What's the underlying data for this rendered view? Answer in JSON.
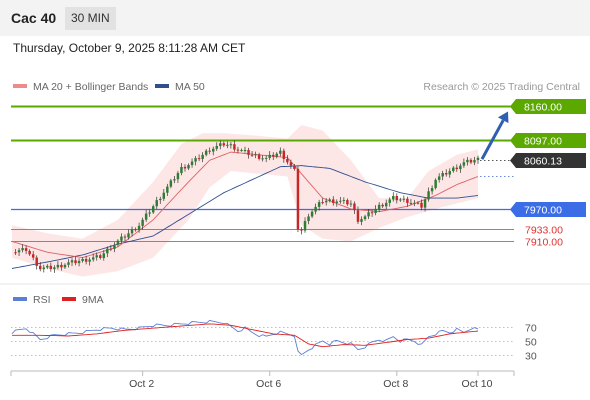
{
  "header": {
    "symbol": "Cac 40",
    "timeframe": "30 MIN"
  },
  "datetime": "Thursday, October 9, 2025 8:11:28 AM CET",
  "legend": {
    "bollinger": {
      "label": "MA 20 + Bollinger Bands",
      "color": "#f08a8a"
    },
    "ma50": {
      "label": "MA 50",
      "color": "#2f4f8f"
    }
  },
  "copyright": "Research © 2025 Trading Central",
  "colors": {
    "up": "#2e7d32",
    "down": "#c62828",
    "resistance": "#5aa800",
    "support": "#3b6ee6",
    "target": "#e03030",
    "last": "#333333",
    "arrow": "#2e5fb0"
  },
  "chart_data": [
    {
      "type": "candlestick",
      "x_ticks": [
        "Oct 2",
        "Oct 6",
        "Oct 8",
        "Oct 10"
      ],
      "y_range": [
        7835,
        8175
      ],
      "last_price": 8060.13,
      "levels": [
        {
          "value": 8160.0,
          "label": "8160.00",
          "kind": "resistance"
        },
        {
          "value": 8097.0,
          "label": "8097.00",
          "kind": "resistance"
        },
        {
          "value": 7970.0,
          "label": "7970.00",
          "kind": "support"
        },
        {
          "value": 7933.0,
          "label": "7933.00",
          "kind": "target"
        },
        {
          "value": 7910.0,
          "label": "7910.00",
          "kind": "target"
        }
      ],
      "forecast_arrow": {
        "from": 8062,
        "to": 8150
      },
      "close_path": [
        [
          0,
          7890
        ],
        [
          4,
          7895
        ],
        [
          8,
          7860
        ],
        [
          12,
          7862
        ],
        [
          16,
          7870
        ],
        [
          20,
          7875
        ],
        [
          25,
          7882
        ],
        [
          28,
          7900
        ],
        [
          32,
          7920
        ],
        [
          36,
          7940
        ],
        [
          40,
          7975
        ],
        [
          44,
          8010
        ],
        [
          48,
          8045
        ],
        [
          52,
          8060
        ],
        [
          56,
          8080
        ],
        [
          60,
          8090
        ],
        [
          62,
          8087
        ],
        [
          64,
          8080
        ],
        [
          68,
          8070
        ],
        [
          72,
          8063
        ],
        [
          76,
          8075
        ],
        [
          80,
          8040
        ],
        [
          81,
          7935
        ],
        [
          82,
          7930
        ],
        [
          84,
          7960
        ],
        [
          88,
          7985
        ],
        [
          92,
          7985
        ],
        [
          96,
          7980
        ],
        [
          98,
          7950
        ],
        [
          100,
          7955
        ],
        [
          104,
          7975
        ],
        [
          108,
          7990
        ],
        [
          112,
          7985
        ],
        [
          116,
          7975
        ],
        [
          118,
          8000
        ],
        [
          120,
          8025
        ],
        [
          124,
          8040
        ],
        [
          128,
          8055
        ],
        [
          132,
          8062
        ]
      ],
      "ma20_path": [
        [
          0,
          7910
        ],
        [
          10,
          7890
        ],
        [
          20,
          7880
        ],
        [
          30,
          7900
        ],
        [
          40,
          7950
        ],
        [
          50,
          8020
        ],
        [
          56,
          8060
        ],
        [
          62,
          8075
        ],
        [
          70,
          8070
        ],
        [
          78,
          8065
        ],
        [
          82,
          8035
        ],
        [
          88,
          7990
        ],
        [
          96,
          7970
        ],
        [
          104,
          7965
        ],
        [
          112,
          7975
        ],
        [
          120,
          7995
        ],
        [
          126,
          8015
        ],
        [
          132,
          8030
        ]
      ],
      "band_upper_path": [
        [
          0,
          7940
        ],
        [
          10,
          7925
        ],
        [
          20,
          7915
        ],
        [
          30,
          7950
        ],
        [
          40,
          8020
        ],
        [
          48,
          8090
        ],
        [
          54,
          8110
        ],
        [
          60,
          8110
        ],
        [
          70,
          8105
        ],
        [
          78,
          8100
        ],
        [
          82,
          8125
        ],
        [
          88,
          8115
        ],
        [
          96,
          8060
        ],
        [
          104,
          7990
        ],
        [
          112,
          7990
        ],
        [
          118,
          8040
        ],
        [
          126,
          8070
        ],
        [
          132,
          8080
        ]
      ],
      "band_lower_path": [
        [
          0,
          7880
        ],
        [
          10,
          7860
        ],
        [
          20,
          7845
        ],
        [
          30,
          7855
        ],
        [
          40,
          7880
        ],
        [
          50,
          7950
        ],
        [
          56,
          8010
        ],
        [
          62,
          8040
        ],
        [
          70,
          8035
        ],
        [
          78,
          8030
        ],
        [
          82,
          7940
        ],
        [
          88,
          7915
        ],
        [
          96,
          7910
        ],
        [
          104,
          7935
        ],
        [
          112,
          7955
        ],
        [
          120,
          7970
        ],
        [
          126,
          7980
        ],
        [
          132,
          7990
        ]
      ],
      "ma50_path": [
        [
          0,
          7860
        ],
        [
          10,
          7872
        ],
        [
          20,
          7885
        ],
        [
          30,
          7905
        ],
        [
          40,
          7920
        ],
        [
          50,
          7960
        ],
        [
          60,
          8000
        ],
        [
          70,
          8030
        ],
        [
          76,
          8048
        ],
        [
          82,
          8050
        ],
        [
          90,
          8045
        ],
        [
          100,
          8020
        ],
        [
          110,
          8000
        ],
        [
          118,
          7990
        ],
        [
          126,
          7990
        ],
        [
          132,
          7995
        ]
      ]
    },
    {
      "type": "line",
      "title": "",
      "legend": [
        {
          "name": "RSI",
          "color": "#5b7fd6"
        },
        {
          "name": "9MA",
          "color": "#e02020"
        }
      ],
      "y_ticks": [
        70,
        50,
        30
      ],
      "y_range": [
        15,
        85
      ],
      "rsi_path": [
        [
          0,
          62
        ],
        [
          4,
          68
        ],
        [
          8,
          52
        ],
        [
          12,
          58
        ],
        [
          16,
          60
        ],
        [
          20,
          62
        ],
        [
          24,
          66
        ],
        [
          28,
          68
        ],
        [
          32,
          66
        ],
        [
          36,
          68
        ],
        [
          40,
          72
        ],
        [
          44,
          72
        ],
        [
          48,
          74
        ],
        [
          52,
          76
        ],
        [
          56,
          77
        ],
        [
          60,
          76
        ],
        [
          62,
          70
        ],
        [
          64,
          64
        ],
        [
          66,
          68
        ],
        [
          68,
          62
        ],
        [
          70,
          58
        ],
        [
          72,
          56
        ],
        [
          74,
          60
        ],
        [
          76,
          62
        ],
        [
          78,
          60
        ],
        [
          80,
          58
        ],
        [
          81,
          34
        ],
        [
          82,
          30
        ],
        [
          84,
          38
        ],
        [
          86,
          44
        ],
        [
          88,
          50
        ],
        [
          90,
          46
        ],
        [
          92,
          50
        ],
        [
          94,
          48
        ],
        [
          96,
          46
        ],
        [
          98,
          38
        ],
        [
          100,
          42
        ],
        [
          102,
          48
        ],
        [
          104,
          52
        ],
        [
          106,
          50
        ],
        [
          108,
          56
        ],
        [
          110,
          50
        ],
        [
          112,
          52
        ],
        [
          114,
          50
        ],
        [
          116,
          44
        ],
        [
          118,
          56
        ],
        [
          120,
          60
        ],
        [
          122,
          64
        ],
        [
          124,
          62
        ],
        [
          126,
          66
        ],
        [
          128,
          62
        ],
        [
          130,
          68
        ],
        [
          132,
          66
        ]
      ],
      "ma9_path": [
        [
          0,
          58
        ],
        [
          8,
          58
        ],
        [
          16,
          57
        ],
        [
          24,
          60
        ],
        [
          32,
          65
        ],
        [
          40,
          68
        ],
        [
          48,
          71
        ],
        [
          56,
          74
        ],
        [
          62,
          72
        ],
        [
          68,
          66
        ],
        [
          74,
          60
        ],
        [
          80,
          58
        ],
        [
          84,
          46
        ],
        [
          88,
          42
        ],
        [
          94,
          45
        ],
        [
          100,
          44
        ],
        [
          106,
          48
        ],
        [
          112,
          52
        ],
        [
          118,
          54
        ],
        [
          124,
          60
        ],
        [
          132,
          64
        ]
      ]
    }
  ]
}
